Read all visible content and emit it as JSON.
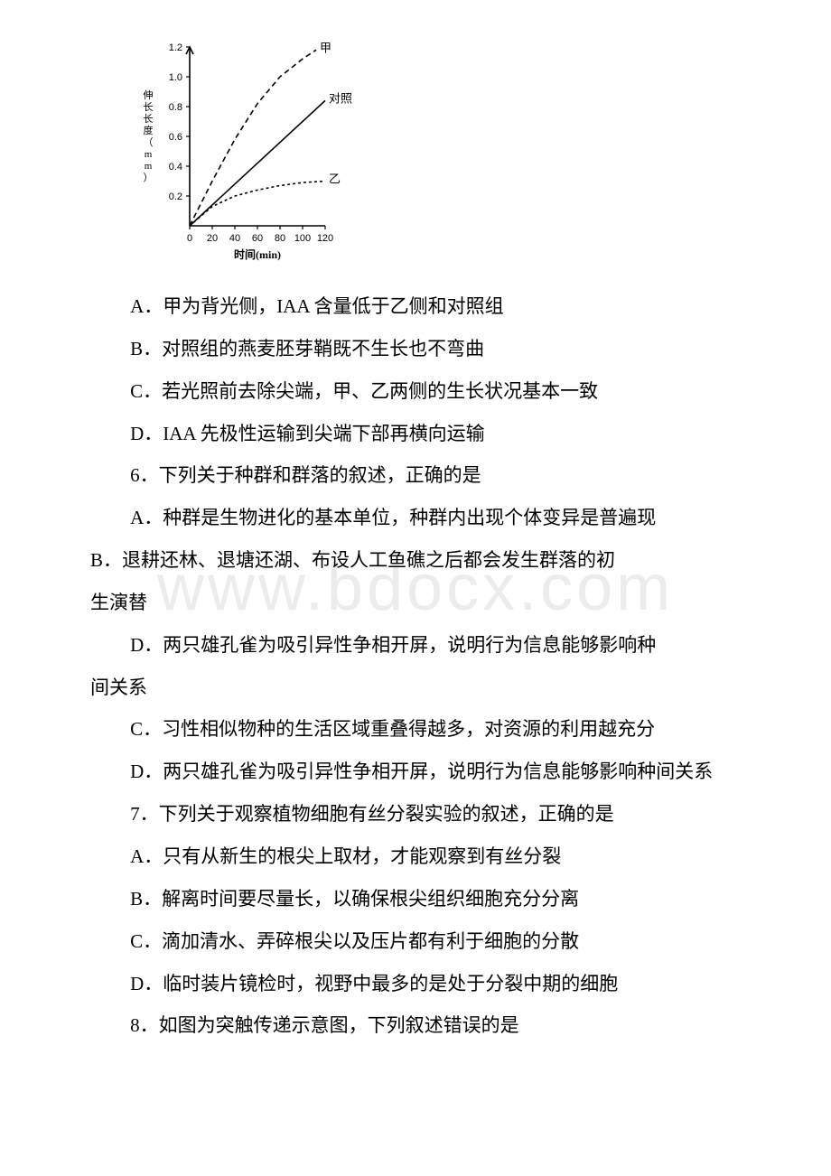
{
  "watermark": "www.bdocx.com",
  "chart": {
    "type": "line",
    "xlabel": "时间(min)",
    "ylabel": "伸长长度（mm）",
    "xlim": [
      0,
      120
    ],
    "ylim": [
      0,
      1.2
    ],
    "xticks": [
      0,
      20,
      40,
      60,
      80,
      100,
      120
    ],
    "yticks": [
      0.2,
      0.4,
      0.6,
      0.8,
      1.0,
      1.2
    ],
    "series": [
      {
        "name": "甲",
        "label": "甲",
        "dash": "6,4",
        "width": 1.6,
        "color": "#000000",
        "points": [
          [
            0,
            0
          ],
          [
            20,
            0.3
          ],
          [
            40,
            0.58
          ],
          [
            60,
            0.82
          ],
          [
            80,
            1.0
          ],
          [
            100,
            1.12
          ],
          [
            112,
            1.18
          ]
        ]
      },
      {
        "name": "对照",
        "label": "对照",
        "dash": "none",
        "width": 1.6,
        "color": "#000000",
        "points": [
          [
            0,
            0
          ],
          [
            120,
            0.84
          ]
        ]
      },
      {
        "name": "乙",
        "label": "乙",
        "dash": "3,3",
        "width": 1.6,
        "color": "#000000",
        "points": [
          [
            0,
            0
          ],
          [
            20,
            0.13
          ],
          [
            40,
            0.2
          ],
          [
            60,
            0.24
          ],
          [
            80,
            0.27
          ],
          [
            100,
            0.29
          ],
          [
            120,
            0.3
          ]
        ]
      }
    ],
    "axis_color": "#000000",
    "background_color": "#ffffff",
    "label_fontsize": 11,
    "tick_fontsize": 11
  },
  "paragraphs": [
    "A．甲为背光侧，IAA 含量低于乙侧和对照组",
    "B．对照组的燕麦胚芽鞘既不生长也不弯曲",
    "C．若光照前去除尖端，甲、乙两侧的生长状况基本一致",
    "D．IAA 先极性运输到尖端下部再横向运输",
    "6．下列关于种群和群落的叙述，正确的是",
    "A．种群是生物进化的基本单位，种群内出现个体变异是普遍现象",
    "B．退耕还林、退塘还湖、布设人工鱼礁之后都会发生群落的初生演替",
    "C．习性相似物种的生活区域重叠得越多，对资源的利用越充分",
    "D．两只雄孔雀为吸引异性争相开屏，说明行为信息能够影响种间关系",
    "7．下列关于观察植物细胞有丝分裂实验的叙述，正确的是",
    "A．只有从新生的根尖上取材，才能观察到有丝分裂",
    "B．解离时间要尽量长，以确保根尖组织细胞充分分离",
    "C．滴加清水、弄碎根尖以及压片都有利于细胞的分散",
    "D．临时装片镜检时，视野中最多的是处于分裂中期的细胞",
    "8．如图为突触传递示意图，下列叙述错误的是"
  ],
  "para_indent": [
    true,
    true,
    true,
    true,
    true,
    true,
    true,
    true,
    true,
    true,
    true,
    true,
    true,
    true,
    true
  ],
  "hang": {
    "5": true,
    "6": true,
    "8": true
  }
}
